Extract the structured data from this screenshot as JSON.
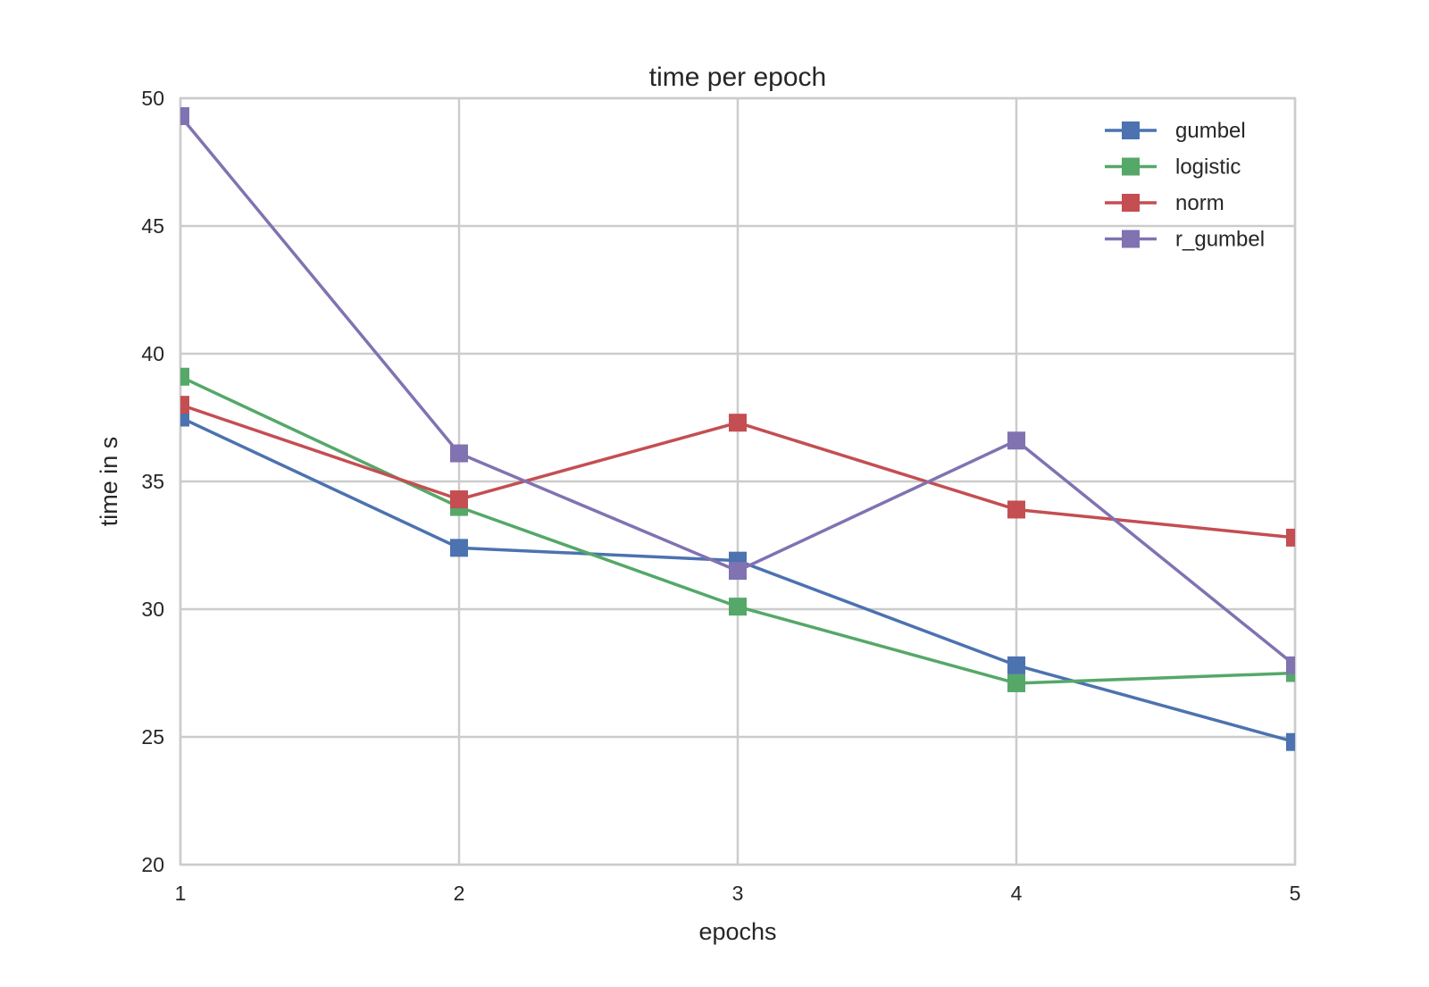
{
  "chart_data": {
    "type": "line",
    "title": "time per epoch",
    "xlabel": "epochs",
    "ylabel": "time in s",
    "x": [
      1,
      2,
      3,
      4,
      5
    ],
    "xlim": [
      1,
      5
    ],
    "ylim": [
      20,
      50
    ],
    "xticks": [
      1,
      2,
      3,
      4,
      5
    ],
    "yticks": [
      20,
      25,
      30,
      35,
      40,
      45,
      50
    ],
    "grid": true,
    "legend_position": "top-right",
    "marker": "square",
    "series": [
      {
        "name": "gumbel",
        "color": "#4c72b0",
        "values": [
          37.5,
          32.4,
          31.9,
          27.8,
          24.8
        ]
      },
      {
        "name": "logistic",
        "color": "#55a868",
        "values": [
          39.1,
          34.0,
          30.1,
          27.1,
          27.5
        ]
      },
      {
        "name": "norm",
        "color": "#c44e52",
        "values": [
          38.0,
          34.3,
          37.3,
          33.9,
          32.8
        ]
      },
      {
        "name": "r_gumbel",
        "color": "#8172b2",
        "values": [
          49.3,
          36.1,
          31.5,
          36.6,
          27.8
        ]
      }
    ]
  }
}
